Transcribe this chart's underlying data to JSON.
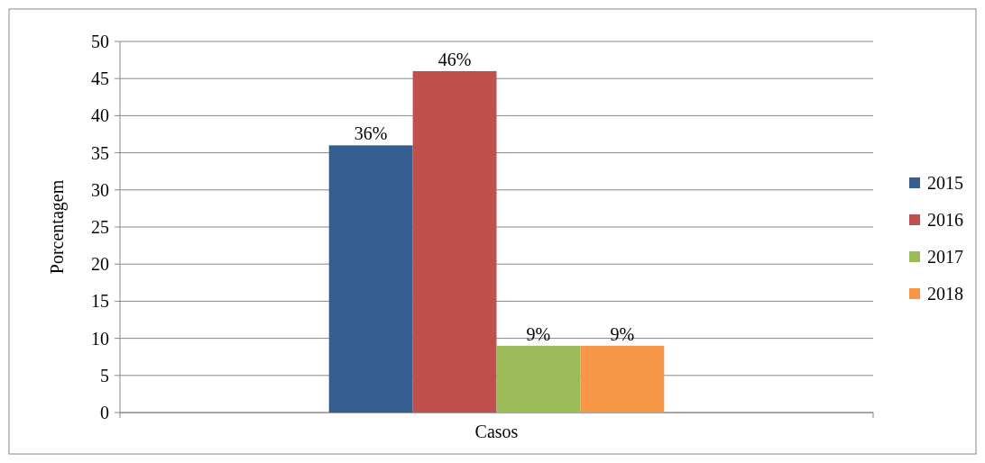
{
  "chart_data": {
    "type": "bar",
    "ylabel": "Porcentagem",
    "categories": [
      "Casos"
    ],
    "series": [
      {
        "name": "2015",
        "color": "#365f91",
        "values": [
          36
        ],
        "value_labels": [
          "36%"
        ]
      },
      {
        "name": "2016",
        "color": "#c0504d",
        "values": [
          46
        ],
        "value_labels": [
          "46%"
        ]
      },
      {
        "name": "2017",
        "color": "#9bbb59",
        "values": [
          9
        ],
        "value_labels": [
          "9%"
        ]
      },
      {
        "name": "2018",
        "color": "#f79646",
        "values": [
          9
        ],
        "value_labels": [
          "9%"
        ]
      }
    ],
    "ylim": [
      0,
      50
    ],
    "yticks": [
      0,
      5,
      10,
      15,
      20,
      25,
      30,
      35,
      40,
      45,
      50
    ],
    "grid": "y",
    "legend": "right"
  }
}
